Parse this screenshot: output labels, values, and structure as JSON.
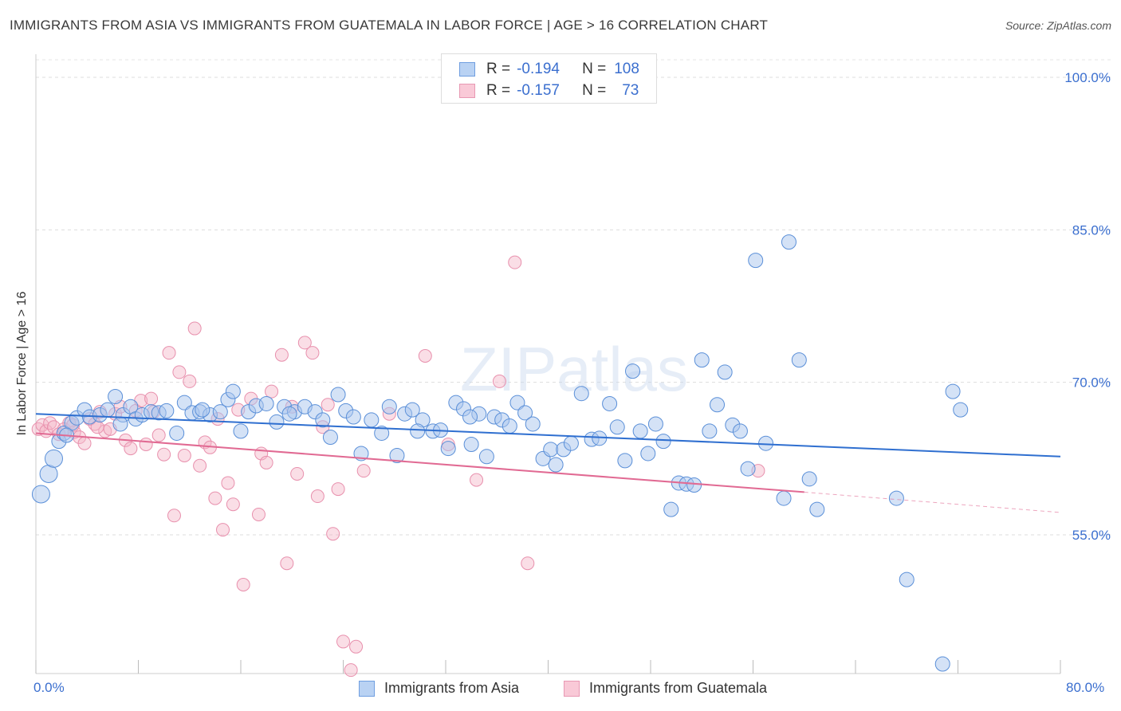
{
  "title": "IMMIGRANTS FROM ASIA VS IMMIGRANTS FROM GUATEMALA IN LABOR FORCE | AGE > 16 CORRELATION CHART",
  "source": "Source: ZipAtlas.com",
  "watermark": "ZIPatlas",
  "colors": {
    "asia": "#a9c6ee",
    "asia_line": "#2f6fd0",
    "guatemala": "#f4b5c8",
    "guatemala_line": "#e16a93",
    "axis_text": "#3b6fcf"
  },
  "legend": {
    "asia": {
      "r_label": "R =",
      "r_value": "-0.194",
      "n_label": "N =",
      "n_value": "108"
    },
    "guatemala": {
      "r_label": "R =",
      "r_value": "-0.157",
      "n_label": "N =",
      "n_value": "73"
    }
  },
  "chart_data": {
    "type": "scatter",
    "title": "IMMIGRANTS FROM ASIA VS IMMIGRANTS FROM GUATEMALA IN LABOR FORCE | AGE > 16 CORRELATION CHART",
    "xlabel": "",
    "ylabel": "In Labor Force | Age > 16",
    "xlim": [
      0,
      80
    ],
    "ylim": [
      40,
      102
    ],
    "x_tick_labels": [
      "0.0%",
      "80.0%"
    ],
    "y_ticks": [
      55,
      70,
      85,
      100
    ],
    "y_tick_labels": [
      "55.0%",
      "70.0%",
      "85.0%",
      "100.0%"
    ],
    "grid": true,
    "legend_position": "top-center",
    "series": [
      {
        "name": "Immigrants from Asia",
        "r": -0.194,
        "n": 108,
        "trend": {
          "x": [
            0,
            80
          ],
          "y": [
            66.9,
            62.7
          ]
        },
        "points": [
          [
            0.4,
            59.0
          ],
          [
            1.0,
            61.0
          ],
          [
            1.4,
            62.5
          ],
          [
            1.8,
            64.2
          ],
          [
            2.2,
            65.0
          ],
          [
            2.8,
            66.0
          ],
          [
            3.2,
            66.5
          ],
          [
            3.8,
            67.3
          ],
          [
            4.2,
            66.6
          ],
          [
            5.0,
            66.8
          ],
          [
            5.6,
            67.3
          ],
          [
            6.2,
            68.6
          ],
          [
            6.8,
            66.8
          ],
          [
            7.4,
            67.6
          ],
          [
            7.8,
            66.4
          ],
          [
            8.3,
            66.8
          ],
          [
            9.0,
            67.1
          ],
          [
            9.6,
            67.0
          ],
          [
            10.2,
            67.2
          ],
          [
            11.0,
            65.0
          ],
          [
            11.6,
            68.0
          ],
          [
            12.2,
            67.0
          ],
          [
            12.8,
            67.1
          ],
          [
            13.6,
            66.8
          ],
          [
            14.4,
            67.1
          ],
          [
            15.0,
            68.3
          ],
          [
            15.4,
            69.1
          ],
          [
            16.0,
            65.2
          ],
          [
            16.6,
            67.1
          ],
          [
            17.2,
            67.7
          ],
          [
            18.0,
            67.9
          ],
          [
            18.8,
            66.1
          ],
          [
            19.4,
            67.6
          ],
          [
            20.2,
            67.1
          ],
          [
            21.0,
            67.6
          ],
          [
            21.8,
            67.1
          ],
          [
            22.4,
            66.3
          ],
          [
            23.0,
            64.6
          ],
          [
            23.6,
            68.8
          ],
          [
            24.2,
            67.2
          ],
          [
            24.8,
            66.6
          ],
          [
            25.4,
            63.0
          ],
          [
            26.2,
            66.3
          ],
          [
            27.0,
            65.0
          ],
          [
            27.6,
            67.6
          ],
          [
            28.2,
            62.8
          ],
          [
            28.8,
            66.9
          ],
          [
            29.4,
            67.3
          ],
          [
            30.2,
            66.3
          ],
          [
            31.0,
            65.2
          ],
          [
            31.6,
            65.3
          ],
          [
            32.2,
            63.5
          ],
          [
            32.8,
            68.0
          ],
          [
            33.4,
            67.4
          ],
          [
            34.0,
            63.9
          ],
          [
            34.6,
            66.9
          ],
          [
            35.2,
            62.7
          ],
          [
            35.8,
            66.6
          ],
          [
            36.4,
            66.3
          ],
          [
            37.0,
            65.7
          ],
          [
            37.6,
            68.0
          ],
          [
            38.2,
            67.0
          ],
          [
            38.8,
            65.9
          ],
          [
            39.6,
            62.5
          ],
          [
            40.2,
            63.4
          ],
          [
            40.6,
            61.9
          ],
          [
            41.2,
            63.4
          ],
          [
            41.8,
            64.0
          ],
          [
            42.6,
            68.9
          ],
          [
            43.4,
            64.4
          ],
          [
            44.0,
            64.5
          ],
          [
            44.8,
            67.9
          ],
          [
            45.4,
            65.6
          ],
          [
            46.0,
            62.3
          ],
          [
            46.6,
            71.1
          ],
          [
            47.2,
            65.2
          ],
          [
            47.8,
            63.0
          ],
          [
            48.4,
            65.9
          ],
          [
            49.0,
            64.2
          ],
          [
            49.6,
            57.5
          ],
          [
            50.2,
            60.1
          ],
          [
            50.8,
            60.0
          ],
          [
            51.4,
            59.9
          ],
          [
            52.0,
            72.2
          ],
          [
            52.6,
            65.2
          ],
          [
            53.2,
            67.8
          ],
          [
            53.8,
            71.0
          ],
          [
            54.4,
            65.8
          ],
          [
            55.0,
            65.2
          ],
          [
            55.6,
            61.5
          ],
          [
            56.2,
            82.0
          ],
          [
            57.0,
            64.0
          ],
          [
            58.4,
            58.6
          ],
          [
            58.8,
            83.8
          ],
          [
            59.6,
            72.2
          ],
          [
            60.4,
            60.5
          ],
          [
            61.0,
            57.5
          ],
          [
            67.2,
            58.6
          ],
          [
            68.0,
            50.6
          ],
          [
            70.8,
            42.3
          ],
          [
            71.6,
            69.1
          ],
          [
            72.2,
            67.3
          ],
          [
            2.4,
            64.8
          ],
          [
            6.6,
            65.9
          ],
          [
            13.0,
            67.3
          ],
          [
            19.8,
            66.9
          ],
          [
            29.8,
            65.2
          ],
          [
            33.9,
            66.6
          ]
        ]
      },
      {
        "name": "Immigrants from Guatemala",
        "r": -0.157,
        "n": 73,
        "trend": {
          "x": [
            0,
            60
          ],
          "y": [
            65.0,
            59.2
          ]
        },
        "trend_dashed": {
          "x": [
            60,
            80
          ],
          "y": [
            59.2,
            57.2
          ]
        },
        "points": [
          [
            0.2,
            65.4
          ],
          [
            0.5,
            65.8
          ],
          [
            0.8,
            65.2
          ],
          [
            1.1,
            66.0
          ],
          [
            1.4,
            65.6
          ],
          [
            1.8,
            64.9
          ],
          [
            2.2,
            65.4
          ],
          [
            2.6,
            66.0
          ],
          [
            3.0,
            65.1
          ],
          [
            3.4,
            64.6
          ],
          [
            3.8,
            64.0
          ],
          [
            4.2,
            66.4
          ],
          [
            4.6,
            65.9
          ],
          [
            5.0,
            67.1
          ],
          [
            5.4,
            65.2
          ],
          [
            5.8,
            65.4
          ],
          [
            6.2,
            66.9
          ],
          [
            6.6,
            67.6
          ],
          [
            7.0,
            64.3
          ],
          [
            7.4,
            63.5
          ],
          [
            7.8,
            67.2
          ],
          [
            8.2,
            68.2
          ],
          [
            8.6,
            63.9
          ],
          [
            9.0,
            68.4
          ],
          [
            9.6,
            64.8
          ],
          [
            10.0,
            62.9
          ],
          [
            10.4,
            72.9
          ],
          [
            10.8,
            56.9
          ],
          [
            11.2,
            71.0
          ],
          [
            11.6,
            62.8
          ],
          [
            12.0,
            70.1
          ],
          [
            12.4,
            75.3
          ],
          [
            12.8,
            61.8
          ],
          [
            13.2,
            64.1
          ],
          [
            13.6,
            63.6
          ],
          [
            14.0,
            58.6
          ],
          [
            14.6,
            55.5
          ],
          [
            15.0,
            60.1
          ],
          [
            15.4,
            58.0
          ],
          [
            15.8,
            67.3
          ],
          [
            16.2,
            50.1
          ],
          [
            16.8,
            68.4
          ],
          [
            17.4,
            57.0
          ],
          [
            17.6,
            63.0
          ],
          [
            18.0,
            62.1
          ],
          [
            18.4,
            69.1
          ],
          [
            19.2,
            72.7
          ],
          [
            19.6,
            52.2
          ],
          [
            20.0,
            67.6
          ],
          [
            20.4,
            61.0
          ],
          [
            21.0,
            73.9
          ],
          [
            21.6,
            72.9
          ],
          [
            22.0,
            58.8
          ],
          [
            22.4,
            65.6
          ],
          [
            22.8,
            67.8
          ],
          [
            23.2,
            55.1
          ],
          [
            23.6,
            59.5
          ],
          [
            24.0,
            44.5
          ],
          [
            24.6,
            41.7
          ],
          [
            25.0,
            44.0
          ],
          [
            25.6,
            61.3
          ],
          [
            27.6,
            66.9
          ],
          [
            30.4,
            72.6
          ],
          [
            32.2,
            63.9
          ],
          [
            34.4,
            60.4
          ],
          [
            36.2,
            70.1
          ],
          [
            37.4,
            81.8
          ],
          [
            38.4,
            52.2
          ],
          [
            56.4,
            61.3
          ],
          [
            2.9,
            65.8
          ],
          [
            4.8,
            65.6
          ],
          [
            9.2,
            67.1
          ],
          [
            14.2,
            66.4
          ]
        ]
      }
    ]
  },
  "bottom_legend": {
    "asia_label": "Immigrants from Asia",
    "guatemala_label": "Immigrants from Guatemala"
  }
}
